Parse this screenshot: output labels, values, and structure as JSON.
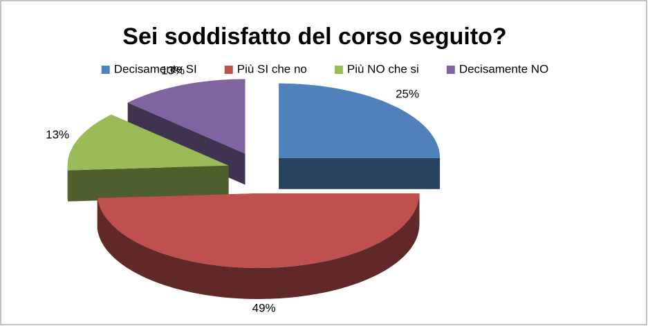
{
  "chart_data": {
    "type": "pie",
    "title": "Sei soddisfatto del corso seguito?",
    "categories": [
      "Decisamente SI",
      "Più SI che no",
      "Più NO che si",
      "Decisamente NO"
    ],
    "values": [
      25,
      49,
      13,
      13
    ],
    "value_labels": [
      "25%",
      "49%",
      "13%",
      "13%"
    ],
    "colors": [
      "#4f81bd",
      "#c0504d",
      "#9bbb59",
      "#8064a2"
    ],
    "legend": "top"
  }
}
